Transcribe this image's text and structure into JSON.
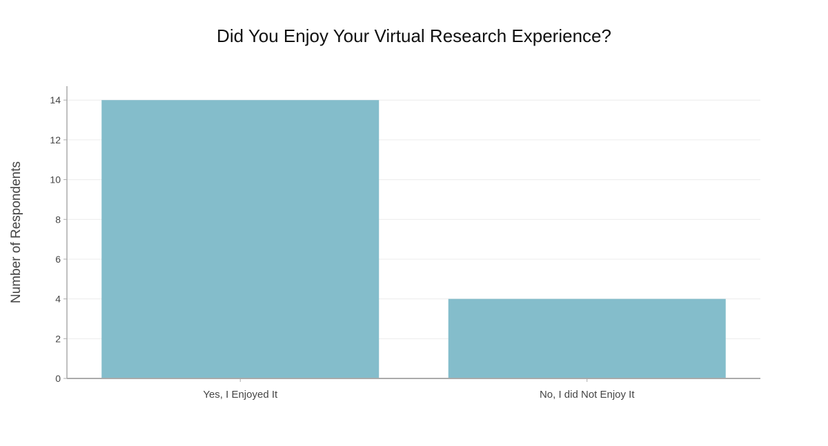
{
  "chart_data": {
    "type": "bar",
    "title": "Did You Enjoy Your Virtual Research Experience?",
    "xlabel": "",
    "ylabel": "Number of Respondents",
    "categories": [
      "Yes, I Enjoyed It",
      "No, I did Not Enjoy It"
    ],
    "values": [
      14,
      4
    ],
    "ylim": [
      0,
      14.7
    ],
    "yticks": [
      0,
      2,
      4,
      6,
      8,
      10,
      12,
      14
    ],
    "grid": true,
    "legend": "none",
    "colors": {
      "bar": "#84bdcb",
      "grid": "#ececec",
      "axis": "#aaaaaa"
    }
  }
}
